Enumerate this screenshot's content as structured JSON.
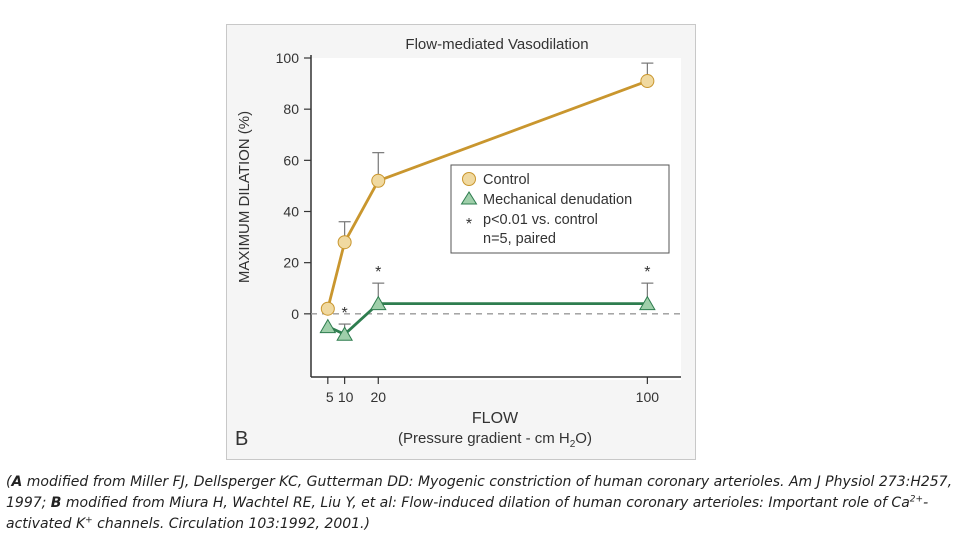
{
  "chart_data": {
    "type": "line",
    "title": "Flow-mediated Vasodilation",
    "panel_label": "B",
    "ylabel": "MAXIMUM DILATION (%)",
    "xlabel": "FLOW",
    "xlabel_sub": "(Pressure gradient - cm H",
    "xlabel_sub_sub": "2",
    "xlabel_sub_end": "O)",
    "ylim": [
      -20,
      100
    ],
    "yticks": [
      0,
      20,
      40,
      60,
      80,
      100
    ],
    "xlim": [
      0,
      110
    ],
    "xticks": [
      5,
      10,
      20,
      100
    ],
    "xtick_labels": [
      "5",
      "10",
      "20",
      "100"
    ],
    "x": [
      5,
      10,
      20,
      100
    ],
    "series": [
      {
        "name": "Control",
        "marker": "circle",
        "color": "#c9962e",
        "fill": "#f0d9a0",
        "values": [
          2,
          28,
          52,
          91
        ],
        "error": [
          0,
          8,
          11,
          7
        ],
        "significance": [
          "",
          "",
          "",
          ""
        ]
      },
      {
        "name": "Mechanical denudation",
        "marker": "triangle",
        "color": "#2e7d4f",
        "fill": "#9fcfaa",
        "values": [
          -5,
          -8,
          4,
          4
        ],
        "error": [
          0,
          4,
          8,
          8
        ],
        "significance": [
          "",
          "*",
          "*",
          "*"
        ]
      }
    ],
    "legend": {
      "placement": "center-right",
      "entries": [
        "Control",
        "Mechanical denudation"
      ],
      "notes": [
        {
          "symbol": "*",
          "text": "p<0.01 vs. control"
        },
        {
          "symbol": "",
          "text": "n=5, paired"
        }
      ]
    },
    "reference_line": {
      "y": 0,
      "style": "dashed"
    },
    "grid": false
  },
  "caption": {
    "open": "(",
    "a_label": "A",
    "a_text": " modified from Miller FJ, Dellsperger KC, Gutterman DD: Myogenic constriction of human coronary arterioles. Am J Physiol 273:H257, 1997; ",
    "b_label": "B",
    "b_text_1": " modified from Miura H, Wachtel RE, Liu Y, et al: Flow-induced dilation of human coronary arterioles: Important role of Ca",
    "ca_sup": "2+",
    "b_text_2": "-activated K",
    "k_sup": "+",
    "b_text_3": " channels. Circulation 103:1992, 2001.)"
  }
}
